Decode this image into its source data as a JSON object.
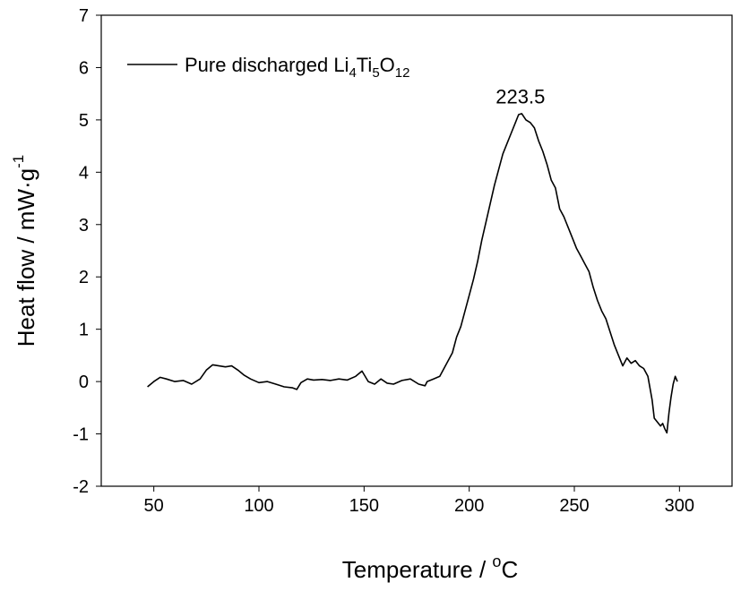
{
  "chart_data": {
    "type": "line",
    "title": "",
    "xlabel": {
      "main": "Temperature / ",
      "sup": "o",
      "unit": "C"
    },
    "ylabel": {
      "main": "Heat flow / mW·g",
      "sup": "-1"
    },
    "xlim": [
      25,
      325
    ],
    "ylim": [
      -2,
      7
    ],
    "xticks": [
      50,
      100,
      150,
      200,
      250,
      300
    ],
    "yticks": [
      -2,
      -1,
      0,
      1,
      2,
      3,
      4,
      5,
      6,
      7
    ],
    "grid": false,
    "legend": {
      "position": "top-left",
      "parts": [
        {
          "t": "Pure discharged Li",
          "sub": false
        },
        {
          "t": "4",
          "sub": true
        },
        {
          "t": "Ti",
          "sub": false
        },
        {
          "t": "5",
          "sub": true
        },
        {
          "t": "O",
          "sub": false
        },
        {
          "t": "12",
          "sub": true
        }
      ]
    },
    "annotations": [
      {
        "text": "223.5",
        "x": 223.5,
        "y": 5.45
      }
    ],
    "series": [
      {
        "name": "Pure discharged Li4Ti5O12",
        "color": "#000000",
        "x": [
          47,
          50,
          53,
          56,
          60,
          64,
          68,
          72,
          75,
          78,
          81,
          84,
          87,
          90,
          93,
          96,
          100,
          104,
          108,
          112,
          116,
          118,
          120,
          123,
          126,
          130,
          134,
          138,
          142,
          146,
          149,
          152,
          155,
          158,
          161,
          164,
          168,
          172,
          176,
          179,
          180,
          183,
          186,
          188,
          190,
          192,
          194,
          196,
          198,
          200,
          202,
          204,
          206,
          208,
          210,
          212,
          214,
          216,
          218,
          220,
          222,
          223.5,
          225,
          227,
          229,
          231,
          233,
          235,
          237,
          239,
          241,
          243,
          245,
          247,
          249,
          251,
          253,
          255,
          257,
          259,
          261,
          263,
          265,
          267,
          269,
          271,
          273,
          275,
          277,
          279,
          281,
          283,
          285,
          287,
          288,
          289,
          290,
          291,
          292,
          293,
          294,
          295,
          296,
          297,
          298,
          299
        ],
        "y": [
          -0.1,
          0.0,
          0.08,
          0.05,
          0.0,
          0.02,
          -0.05,
          0.05,
          0.22,
          0.32,
          0.3,
          0.28,
          0.3,
          0.22,
          0.12,
          0.05,
          -0.02,
          0.0,
          -0.05,
          -0.1,
          -0.12,
          -0.15,
          -0.02,
          0.05,
          0.03,
          0.04,
          0.02,
          0.05,
          0.03,
          0.1,
          0.2,
          0.0,
          -0.05,
          0.05,
          -0.03,
          -0.05,
          0.02,
          0.05,
          -0.05,
          -0.08,
          0.0,
          0.05,
          0.1,
          0.25,
          0.4,
          0.55,
          0.85,
          1.05,
          1.35,
          1.65,
          1.95,
          2.3,
          2.7,
          3.05,
          3.4,
          3.75,
          4.05,
          4.35,
          4.55,
          4.75,
          4.95,
          5.1,
          5.12,
          5.0,
          4.95,
          4.85,
          4.6,
          4.4,
          4.15,
          3.85,
          3.7,
          3.3,
          3.15,
          2.95,
          2.75,
          2.55,
          2.4,
          2.25,
          2.1,
          1.8,
          1.55,
          1.35,
          1.2,
          0.95,
          0.7,
          0.5,
          0.3,
          0.45,
          0.35,
          0.4,
          0.3,
          0.25,
          0.1,
          -0.35,
          -0.7,
          -0.75,
          -0.8,
          -0.85,
          -0.8,
          -0.9,
          -0.98,
          -0.6,
          -0.3,
          -0.05,
          0.1,
          0.0
        ]
      }
    ]
  }
}
